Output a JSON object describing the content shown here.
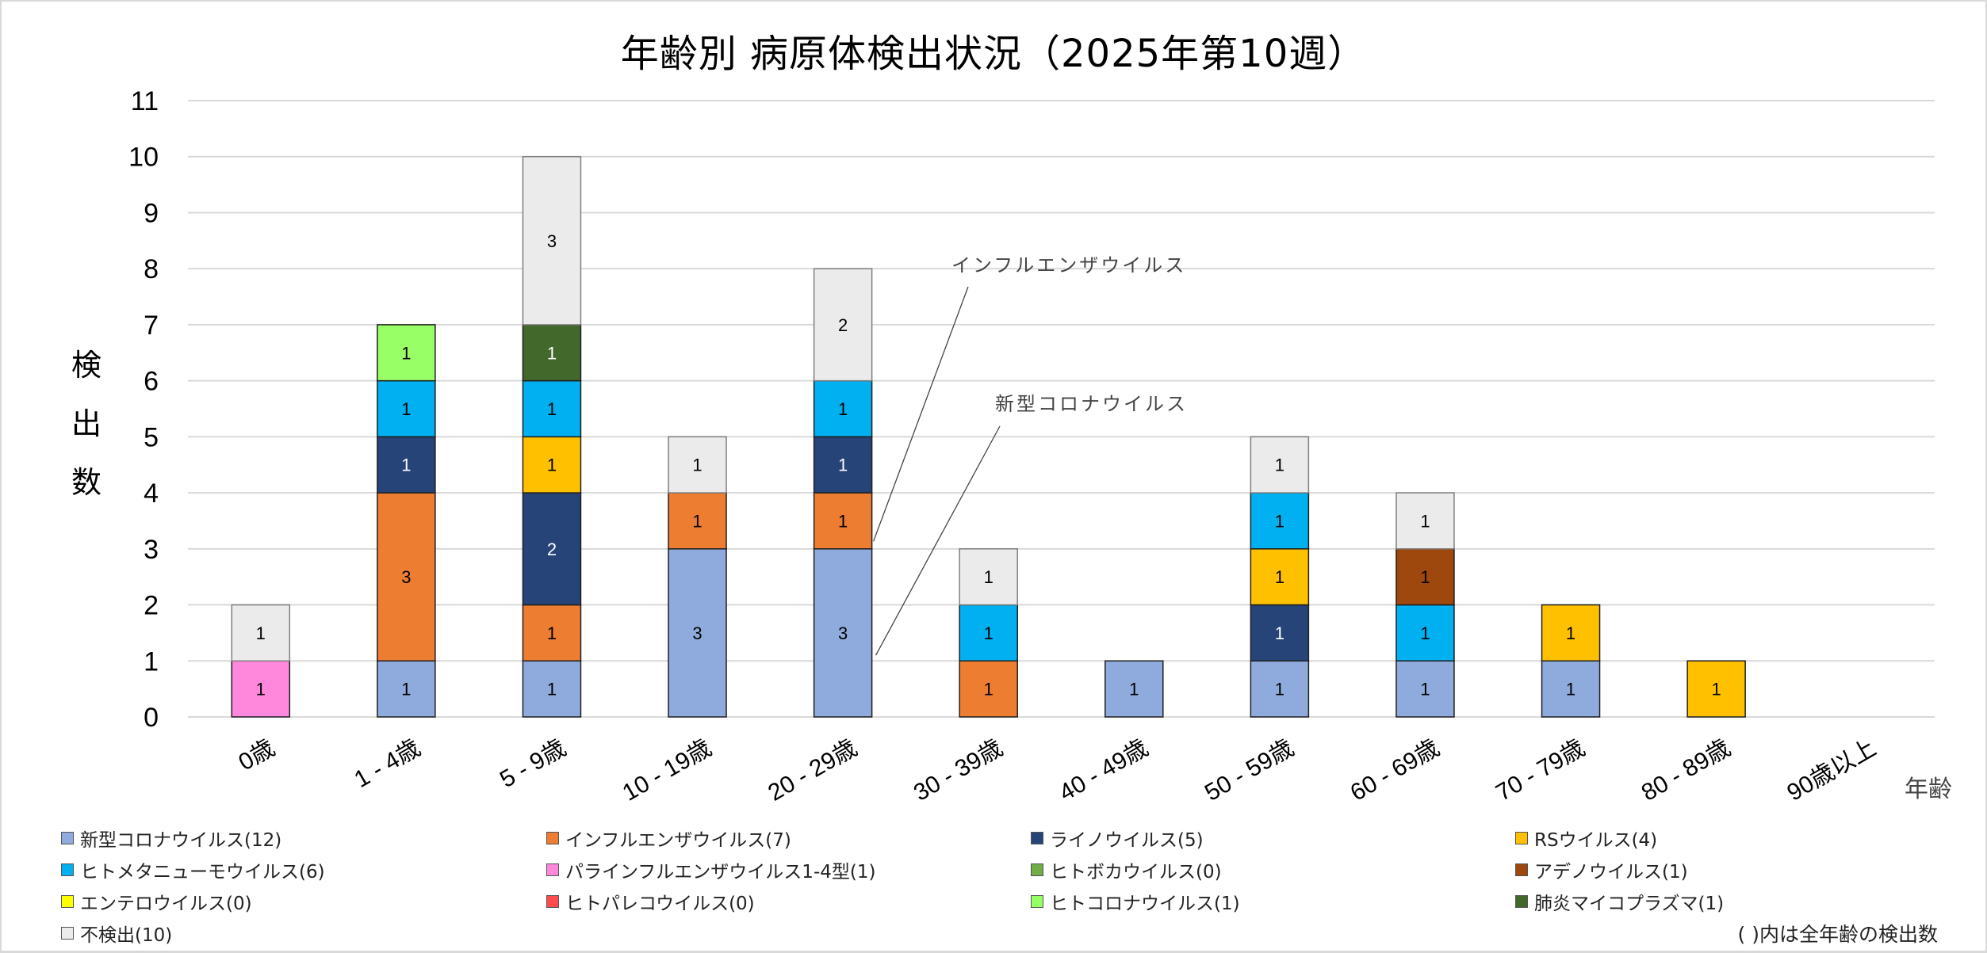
{
  "chart_data": {
    "type": "bar",
    "stacked": true,
    "title": "年齢別 病原体検出状況（2025年第10週）",
    "xlabel": "年齢",
    "ylabel": "検出数",
    "ylim": [
      0,
      11
    ],
    "yticks": [
      0,
      1,
      2,
      3,
      4,
      5,
      6,
      7,
      8,
      9,
      10,
      11
    ],
    "grid": true,
    "legend_position": "bottom",
    "categories": [
      "0歳",
      "1 - 4歳",
      "5 - 9歳",
      "10 - 19歳",
      "20 - 29歳",
      "30 - 39歳",
      "40 - 49歳",
      "50 - 59歳",
      "60 - 69歳",
      "70 - 79歳",
      "80 - 89歳",
      "90歳以上"
    ],
    "series": [
      {
        "name": "新型コロナウイルス",
        "total": 12,
        "color": "#8faadc",
        "label_color": "#000000",
        "values": [
          0,
          1,
          1,
          3,
          3,
          0,
          1,
          1,
          1,
          1,
          0,
          0
        ]
      },
      {
        "name": "インフルエンザウイルス",
        "total": 7,
        "color": "#ed7d31",
        "label_color": "#000000",
        "values": [
          0,
          3,
          1,
          1,
          1,
          1,
          0,
          0,
          0,
          0,
          0,
          0
        ]
      },
      {
        "name": "ライノウイルス",
        "total": 5,
        "color": "#264478",
        "label_color": "#ffffff",
        "values": [
          0,
          1,
          2,
          0,
          1,
          0,
          0,
          1,
          0,
          0,
          0,
          0
        ]
      },
      {
        "name": "RSウイルス",
        "total": 4,
        "color": "#ffc000",
        "label_color": "#000000",
        "values": [
          0,
          0,
          1,
          0,
          0,
          0,
          0,
          1,
          0,
          1,
          1,
          0
        ]
      },
      {
        "name": "ヒトメタニューモウイルス",
        "total": 6,
        "color": "#00b0f0",
        "label_color": "#000000",
        "values": [
          0,
          1,
          1,
          0,
          1,
          1,
          0,
          1,
          1,
          0,
          0,
          0
        ]
      },
      {
        "name": "パラインフルエンザウイルス1-4型",
        "total": 1,
        "color": "#ff87dc",
        "label_color": "#000000",
        "values": [
          1,
          0,
          0,
          0,
          0,
          0,
          0,
          0,
          0,
          0,
          0,
          0
        ]
      },
      {
        "name": "ヒトボカウイルス",
        "total": 0,
        "color": "#70ad47",
        "label_color": "#000000",
        "values": [
          0,
          0,
          0,
          0,
          0,
          0,
          0,
          0,
          0,
          0,
          0,
          0
        ]
      },
      {
        "name": "アデノウイルス",
        "total": 1,
        "color": "#9e480e",
        "label_color": "#000000",
        "values": [
          0,
          0,
          0,
          0,
          0,
          0,
          0,
          0,
          1,
          0,
          0,
          0
        ]
      },
      {
        "name": "エンテロウイルス",
        "total": 0,
        "color": "#ffff00",
        "label_color": "#000000",
        "values": [
          0,
          0,
          0,
          0,
          0,
          0,
          0,
          0,
          0,
          0,
          0,
          0
        ]
      },
      {
        "name": "ヒトパレコウイルス",
        "total": 0,
        "color": "#ff4b4b",
        "label_color": "#000000",
        "values": [
          0,
          0,
          0,
          0,
          0,
          0,
          0,
          0,
          0,
          0,
          0,
          0
        ]
      },
      {
        "name": "ヒトコロナウイルス",
        "total": 1,
        "color": "#99ff66",
        "label_color": "#000000",
        "values": [
          0,
          1,
          0,
          0,
          0,
          0,
          0,
          0,
          0,
          0,
          0,
          0
        ]
      },
      {
        "name": "肺炎マイコプラズマ",
        "total": 1,
        "color": "#43682b",
        "label_color": "#ffffff",
        "values": [
          0,
          0,
          1,
          0,
          0,
          0,
          0,
          0,
          0,
          0,
          0,
          0
        ]
      },
      {
        "name": "不検出",
        "total": 10,
        "color": "#ebebeb",
        "label_color": "#000000",
        "values": [
          1,
          0,
          3,
          1,
          2,
          1,
          0,
          1,
          1,
          0,
          0,
          0
        ]
      }
    ],
    "legend_entries": [
      "新型コロナウイルス(12)",
      "インフルエンザウイルス(7)",
      "ライノウイルス(5)",
      "RSウイルス(4)",
      "ヒトメタニューモウイルス(6)",
      "パラインフルエンザウイルス1-4型(1)",
      "ヒトボカウイルス(0)",
      "アデノウイルス(1)",
      "エンテロウイルス(0)",
      "ヒトパレコウイルス(0)",
      "ヒトコロナウイルス(1)",
      "肺炎マイコプラズマ(1)",
      "不検出(10)"
    ],
    "annotations": [
      {
        "text": "インフルエンザウイルス",
        "points_to": {
          "category": "20 - 29歳",
          "series": "インフルエンザウイルス"
        }
      },
      {
        "text": "新型コロナウイルス",
        "points_to": {
          "category": "20 - 29歳",
          "series": "新型コロナウイルス"
        }
      }
    ],
    "footnote": "( )内は全年齢の検出数"
  }
}
